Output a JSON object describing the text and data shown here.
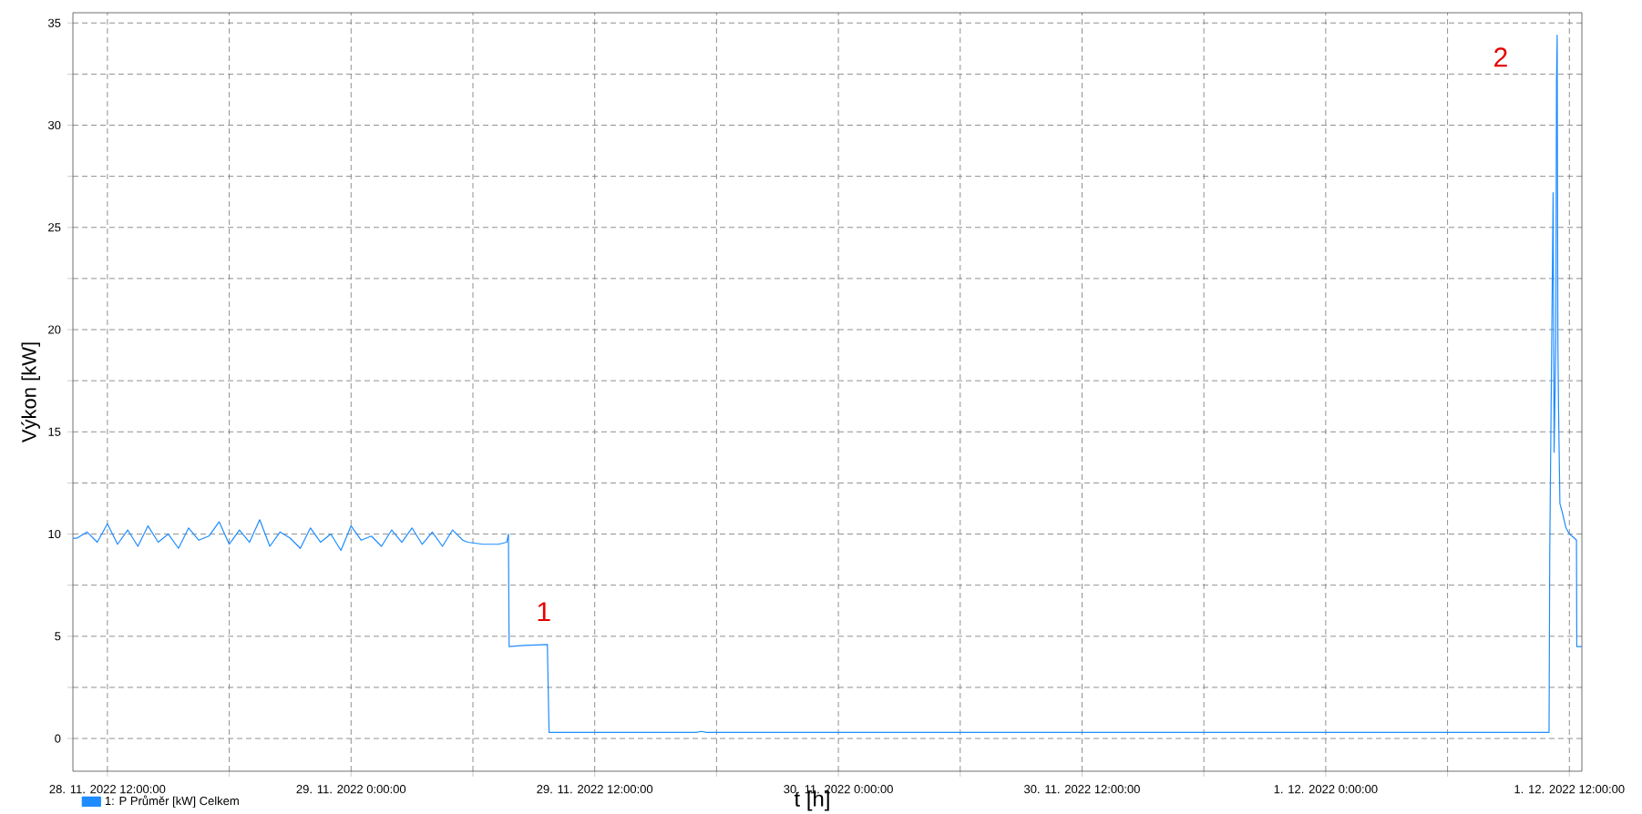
{
  "chart_data": {
    "type": "line",
    "xlabel": "t [h]",
    "ylabel": "Výkon [kW]",
    "x": [
      "2022-11-28T10:18",
      "2022-11-28T10:30",
      "2022-11-28T11:00",
      "2022-11-28T11:30",
      "2022-11-28T12:00",
      "2022-11-28T12:30",
      "2022-11-28T13:00",
      "2022-11-28T13:30",
      "2022-11-28T14:00",
      "2022-11-28T14:30",
      "2022-11-28T15:00",
      "2022-11-28T15:30",
      "2022-11-28T16:00",
      "2022-11-28T16:30",
      "2022-11-28T17:00",
      "2022-11-28T17:30",
      "2022-11-28T18:00",
      "2022-11-28T18:30",
      "2022-11-28T19:00",
      "2022-11-28T19:30",
      "2022-11-28T20:00",
      "2022-11-28T20:30",
      "2022-11-28T21:00",
      "2022-11-28T21:30",
      "2022-11-28T22:00",
      "2022-11-28T22:30",
      "2022-11-28T23:00",
      "2022-11-28T23:30",
      "2022-11-29T00:00",
      "2022-11-29T00:30",
      "2022-11-29T01:00",
      "2022-11-29T01:30",
      "2022-11-29T02:00",
      "2022-11-29T02:30",
      "2022-11-29T03:00",
      "2022-11-29T03:30",
      "2022-11-29T04:00",
      "2022-11-29T04:30",
      "2022-11-29T05:00",
      "2022-11-29T05:30",
      "2022-11-29T05:45",
      "2022-11-29T06:30",
      "2022-11-29T07:15",
      "2022-11-29T07:40",
      "2022-11-29T07:45",
      "2022-11-29T07:47",
      "2022-11-29T08:30",
      "2022-11-29T09:40",
      "2022-11-29T09:45",
      "2022-11-29T17:00",
      "2022-11-29T17:15",
      "2022-11-29T17:30",
      "2022-12-01T11:00",
      "2022-12-01T11:02",
      "2022-12-01T11:12",
      "2022-12-01T11:15",
      "2022-12-01T11:20",
      "2022-12-01T11:22",
      "2022-12-01T11:24",
      "2022-12-01T11:26",
      "2022-12-01T11:28",
      "2022-12-01T11:32",
      "2022-12-01T11:40",
      "2022-12-01T11:50",
      "2022-12-01T12:00",
      "2022-12-01T12:15",
      "2022-12-01T12:21",
      "2022-12-01T12:22",
      "2022-12-01T12:37"
    ],
    "series": [
      {
        "name": "1: P Průměr [kW] Celkem",
        "color": "#1e8cff",
        "values": [
          9.8,
          9.8,
          10.1,
          9.6,
          10.5,
          9.5,
          10.2,
          9.4,
          10.4,
          9.6,
          10.0,
          9.3,
          10.3,
          9.7,
          9.9,
          10.6,
          9.5,
          10.2,
          9.6,
          10.7,
          9.4,
          10.1,
          9.8,
          9.3,
          10.3,
          9.6,
          10.0,
          9.2,
          10.4,
          9.7,
          9.9,
          9.4,
          10.2,
          9.6,
          10.3,
          9.5,
          10.1,
          9.4,
          10.2,
          9.7,
          9.6,
          9.5,
          9.5,
          9.6,
          10.0,
          4.5,
          4.55,
          4.6,
          0.3,
          0.3,
          0.35,
          0.3,
          0.3,
          9.0,
          26.7,
          14,
          19.5,
          32.2,
          34.4,
          19.5,
          16.2,
          11.5,
          11.0,
          10.3,
          10.0,
          9.8,
          9.7,
          4.5,
          4.5
        ]
      }
    ],
    "xlim": [
      "2022-11-28T10:18",
      "2022-12-01T12:37"
    ],
    "ylim": [
      -1.6,
      35.5
    ],
    "xticks": [
      {
        "value": "2022-11-28T12:00",
        "label": "28. 11. 2022 12:00:00"
      },
      {
        "value": "2022-11-28T18:00",
        "label": null
      },
      {
        "value": "2022-11-29T00:00",
        "label": "29. 11. 2022 0:00:00"
      },
      {
        "value": "2022-11-29T06:00",
        "label": null
      },
      {
        "value": "2022-11-29T12:00",
        "label": "29. 11. 2022 12:00:00"
      },
      {
        "value": "2022-11-29T18:00",
        "label": null
      },
      {
        "value": "2022-11-30T00:00",
        "label": "30. 11. 2022 0:00:00"
      },
      {
        "value": "2022-11-30T06:00",
        "label": null
      },
      {
        "value": "2022-11-30T12:00",
        "label": "30. 11. 2022 12:00:00"
      },
      {
        "value": "2022-11-30T18:00",
        "label": null
      },
      {
        "value": "2022-12-01T00:00",
        "label": "1. 12. 2022 0:00:00"
      },
      {
        "value": "2022-12-01T06:00",
        "label": null
      },
      {
        "value": "2022-12-01T12:00",
        "label": "1. 12. 2022 12:00:00"
      }
    ],
    "yticks": [
      0,
      {
        "value": 2.5,
        "label": null
      },
      5,
      {
        "value": 7.5,
        "label": null
      },
      10,
      {
        "value": 12.5,
        "label": null
      },
      15,
      {
        "value": 17.5,
        "label": null
      },
      20,
      {
        "value": 22.5,
        "label": null
      },
      25,
      {
        "value": 27.5,
        "label": null
      },
      30,
      {
        "value": 32.5,
        "label": null
      },
      35
    ],
    "annotations": [
      {
        "text": "1",
        "x": "2022-11-29T09:40",
        "y": 4.6
      },
      {
        "text": "2",
        "x": "2022-12-01T11:24",
        "y": 34.4
      }
    ],
    "grid": true,
    "legend": "bottom left"
  }
}
